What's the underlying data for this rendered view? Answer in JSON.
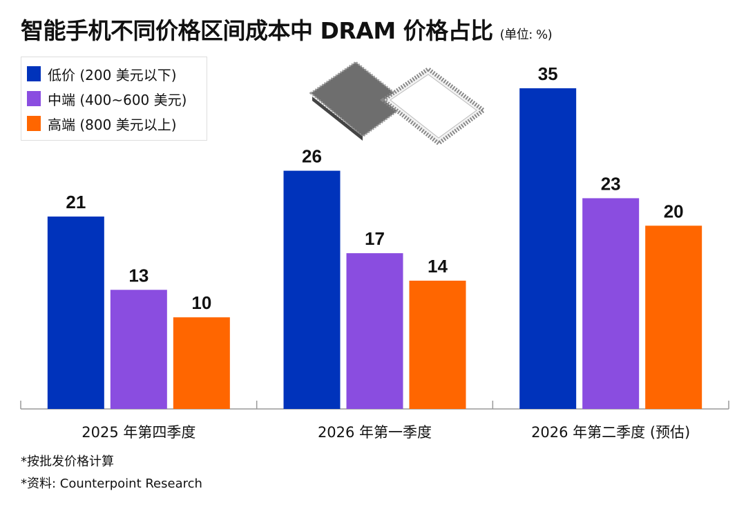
{
  "chart_data": {
    "type": "bar",
    "title": "智能手机不同价格区间成本中 DRAM 价格占比",
    "unit": "(单位: %)",
    "categories": [
      "2025 年第四季度",
      "2026 年第一季度",
      "2026 年第二季度 (预估)"
    ],
    "series": [
      {
        "name": "低价 (200 美元以下)",
        "color": "#0033bb",
        "values": [
          21,
          26,
          35
        ]
      },
      {
        "name": "中端 (400~600 美元)",
        "color": "#8a4de0",
        "values": [
          13,
          17,
          23
        ]
      },
      {
        "name": "高端 (800 美元以上)",
        "color": "#ff6600",
        "values": [
          10,
          14,
          20
        ]
      }
    ],
    "ylim": [
      0,
      35
    ],
    "grid": false,
    "legend_placement": "top-left",
    "data_labels": true,
    "notes": [
      "*按批发价格计算",
      "*资料: Counterpoint Research"
    ],
    "decoration": "dram-chip-illustration"
  }
}
